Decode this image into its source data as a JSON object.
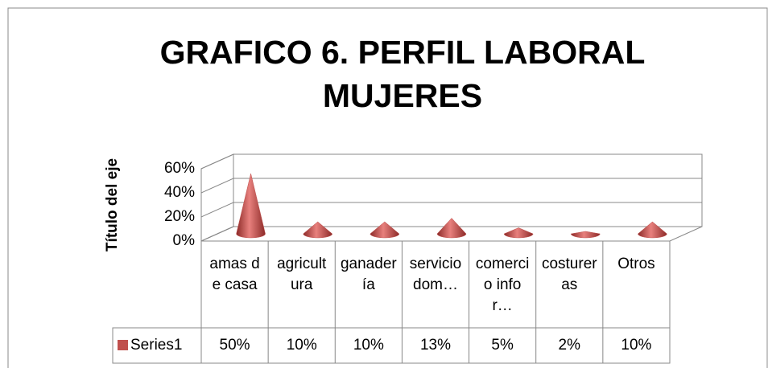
{
  "chart_data": {
    "type": "cone3d",
    "title": "GRAFICO 6. PERFIL LABORAL MUJERES",
    "y_axis_label": "Título del eje",
    "categories": [
      "amas de casa",
      "agricultura",
      "ganadería",
      "servicio dom…",
      "comercio infor…",
      "costureras",
      "Otros"
    ],
    "series": [
      {
        "name": "Series1",
        "color": "#c0504d",
        "values": [
          50,
          10,
          10,
          13,
          5,
          2,
          10
        ],
        "value_labels": [
          "50%",
          "10%",
          "10%",
          "13%",
          "5%",
          "2%",
          "10%"
        ]
      }
    ],
    "ylim": [
      0,
      60
    ],
    "yticks": [
      {
        "value": 0,
        "label": "0%"
      },
      {
        "value": 20,
        "label": "20%"
      },
      {
        "value": 40,
        "label": "40%"
      },
      {
        "value": 60,
        "label": "60%"
      }
    ],
    "grid": true
  }
}
